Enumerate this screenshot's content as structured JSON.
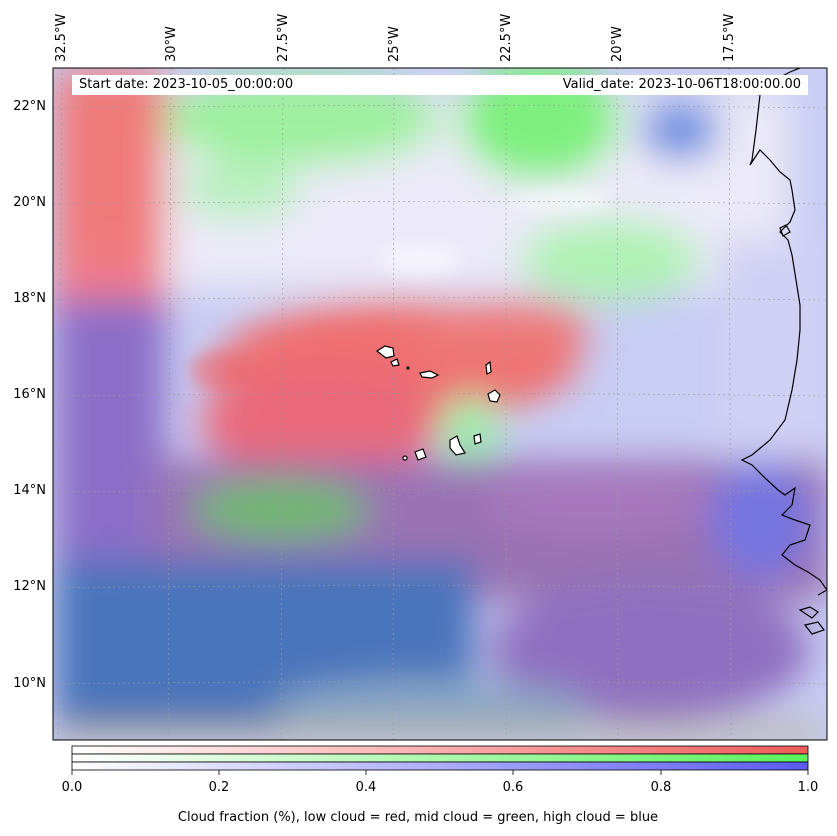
{
  "info": {
    "start_date": "Start date: 2023-10-05_00:00:00",
    "valid_date": "Valid_date: 2023-10-06T18:00:00.00"
  },
  "lon_labels": [
    "32.5°W",
    "30°W",
    "27.5°W",
    "25°W",
    "22.5°W",
    "20°W",
    "17.5°W"
  ],
  "lat_labels": [
    "22°N",
    "20°N",
    "18°N",
    "16°N",
    "14°N",
    "12°N",
    "10°N"
  ],
  "colorbar": {
    "ticks": [
      "0.0",
      "0.2",
      "0.4",
      "0.6",
      "0.8",
      "1.0"
    ],
    "label": "Cloud fraction (%), low cloud = red, mid cloud = green, high cloud = blue",
    "colors": {
      "low": "#f25a5a",
      "mid": "#5af25a",
      "high": "#5a5af2"
    }
  }
}
